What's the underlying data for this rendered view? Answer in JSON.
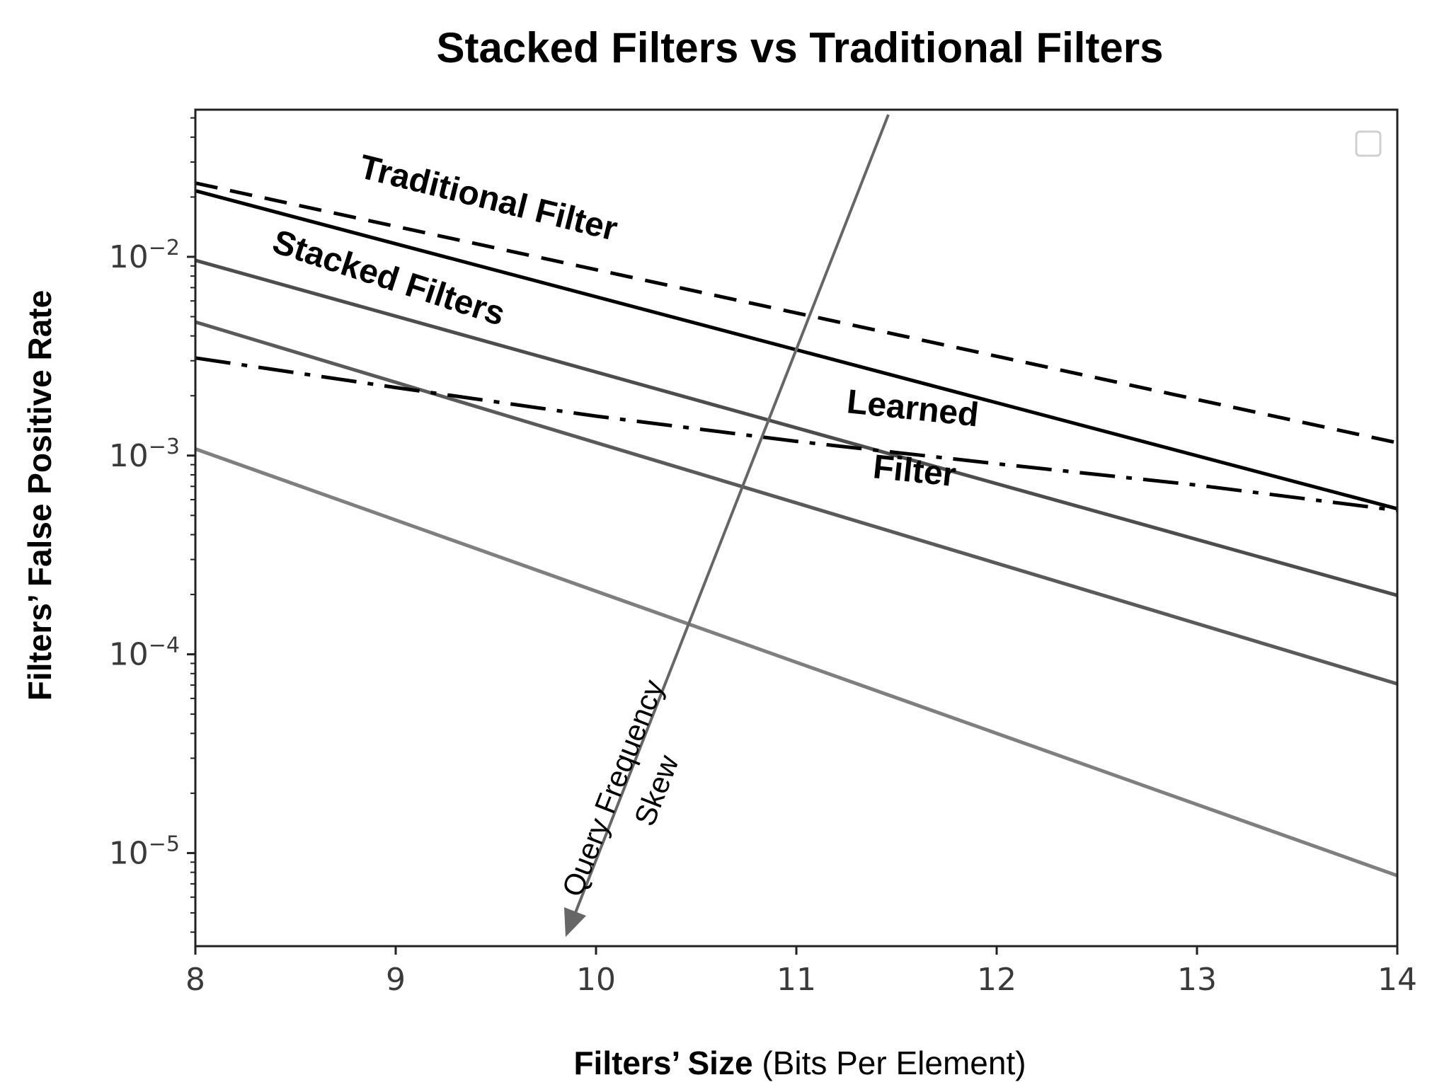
{
  "chart_data": {
    "type": "line",
    "title": "Stacked Filters vs Traditional Filters",
    "xlabel_bold": "Filters’ Size",
    "xlabel_normal": " (Bits Per Element)",
    "ylabel": "Filters’ False Positive Rate",
    "xlim": [
      8,
      14
    ],
    "ylim": [
      3.4e-06,
      0.055
    ],
    "yscale": "log",
    "x_ticks": [
      8,
      9,
      10,
      11,
      12,
      13,
      14
    ],
    "x_tick_labels": [
      "8",
      "9",
      "10",
      "11",
      "12",
      "13",
      "14"
    ],
    "y_ticks": [
      0.01,
      0.001,
      0.0001,
      1e-05
    ],
    "y_tick_labels": [
      {
        "base": "10",
        "exp": "−2"
      },
      {
        "base": "10",
        "exp": "−3"
      },
      {
        "base": "10",
        "exp": "−4"
      },
      {
        "base": "10",
        "exp": "−5"
      }
    ],
    "series": [
      {
        "style": "dashed",
        "color": "#000000",
        "x": [
          8,
          14
        ],
        "y": [
          0.0235,
          0.00116
        ]
      },
      {
        "style": "solid",
        "color": "#000000",
        "x": [
          8,
          14
        ],
        "y": [
          0.0215,
          0.00054
        ]
      },
      {
        "style": "solid",
        "color": "#4d4d4d",
        "x": [
          8,
          14
        ],
        "y": [
          0.0096,
          0.000198
        ]
      },
      {
        "style": "solid",
        "color": "#5a5a5a",
        "x": [
          8,
          14
        ],
        "y": [
          0.0047,
          7.1e-05
        ]
      },
      {
        "style": "solid",
        "color": "#7f7f7f",
        "x": [
          8,
          14
        ],
        "y": [
          0.00108,
          7.7e-06
        ]
      },
      {
        "style": "dashdot",
        "color": "#000000",
        "x": [
          8,
          9,
          10,
          11,
          12,
          13,
          14
        ],
        "y": [
          0.0031,
          0.0022,
          0.00158,
          0.00118,
          0.00091,
          0.00071,
          0.00053
        ]
      }
    ],
    "annotations": [
      {
        "text": "Traditional Filter"
      },
      {
        "text": "Stacked Filters"
      },
      {
        "text": "Learned"
      },
      {
        "text": "Filter"
      }
    ],
    "arrow": {
      "label_line1": "Query Frequency",
      "label_line2": "Skew",
      "color": "#666666"
    },
    "grid": false,
    "legend": "top-right (empty)"
  }
}
